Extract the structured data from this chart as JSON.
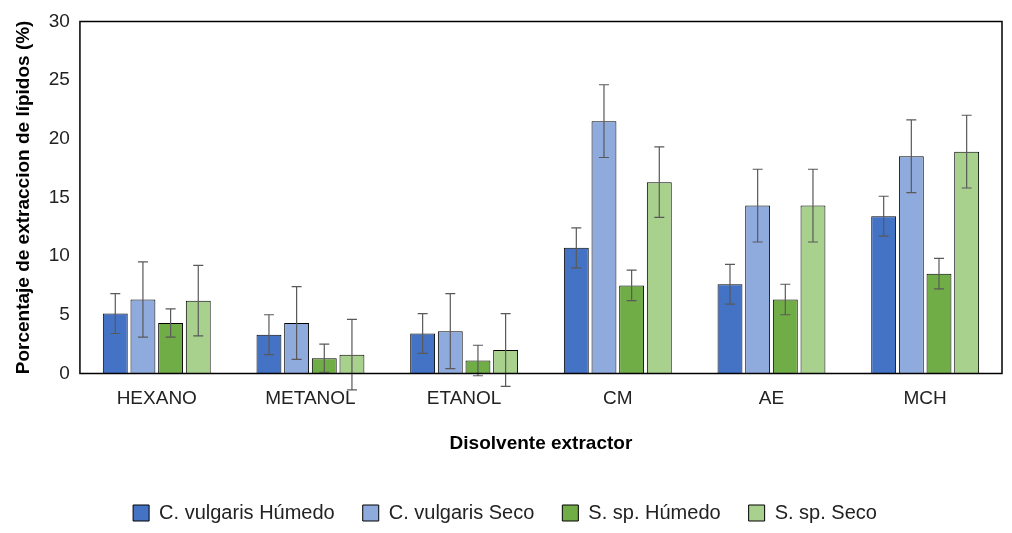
{
  "chart_data": {
    "type": "bar",
    "xlabel": "Disolvente extractor",
    "ylabel": "Porcentaje de extraccion de lípidos (%)",
    "categories": [
      "HEXANO",
      "METANOL",
      "ETANOL",
      "CM",
      "AE",
      "MCH"
    ],
    "series": [
      {
        "name": "C. vulgaris Húmedo",
        "color": "#4472c4",
        "values": [
          5.1,
          3.3,
          3.4,
          10.7,
          7.6,
          13.4
        ],
        "errors": [
          1.7,
          1.7,
          1.7,
          1.7,
          1.7,
          1.7
        ]
      },
      {
        "name": "C. vulgaris Seco",
        "color": "#8faadc",
        "values": [
          6.3,
          4.3,
          3.6,
          21.5,
          14.3,
          18.5
        ],
        "errors": [
          3.2,
          3.1,
          3.2,
          3.1,
          3.1,
          3.1
        ]
      },
      {
        "name": "S. sp. Húmedo",
        "color": "#70ad47",
        "values": [
          4.3,
          1.3,
          1.1,
          7.5,
          6.3,
          8.5
        ],
        "errors": [
          1.2,
          1.2,
          1.3,
          1.3,
          1.3,
          1.3
        ]
      },
      {
        "name": "S. sp. Seco",
        "color": "#a9d18e",
        "values": [
          6.2,
          1.6,
          2.0,
          16.3,
          14.3,
          18.9
        ],
        "errors": [
          3.0,
          3.0,
          3.1,
          3.0,
          3.1,
          3.1
        ]
      }
    ],
    "ylim": [
      0,
      30
    ],
    "yticks": [
      0,
      5,
      10,
      15,
      20,
      25,
      30
    ],
    "grid": false,
    "legend": "bottom"
  }
}
